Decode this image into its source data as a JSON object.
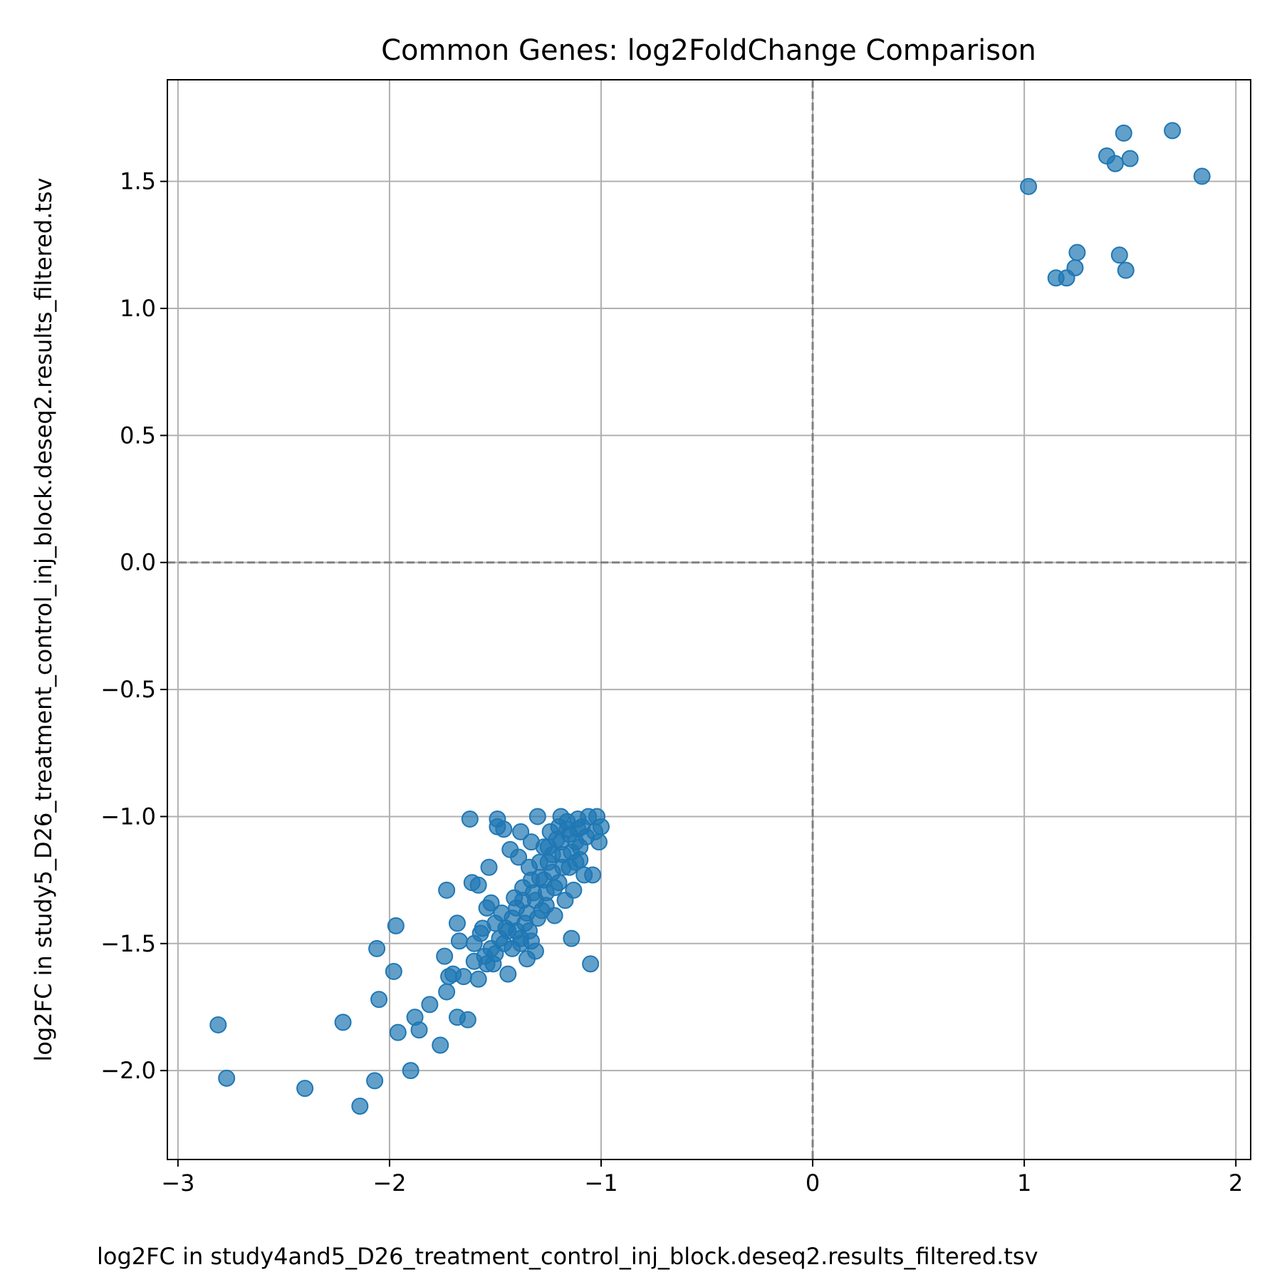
{
  "chart_data": {
    "type": "scatter",
    "title": "Common Genes: log2FoldChange Comparison",
    "xlabel": "log2FC in study4and5_D26_treatment_control_inj_block.deseq2.results_filtered.tsv",
    "ylabel": "log2FC in study5_D26_treatment_control_inj_block.deseq2.results_filtered.tsv",
    "xlim": [
      -3.05,
      2.07
    ],
    "ylim": [
      -2.35,
      1.9
    ],
    "grid": true,
    "reference_lines": {
      "x": 0,
      "y": 0,
      "style": "dashed",
      "color": "#808080"
    },
    "color": "#1f77b4",
    "x_ticks": [
      {
        "value": -3,
        "label": "−3"
      },
      {
        "value": -2,
        "label": "−2"
      },
      {
        "value": -1,
        "label": "−1"
      },
      {
        "value": 0,
        "label": "0"
      },
      {
        "value": 1,
        "label": "1"
      },
      {
        "value": 2,
        "label": "2"
      }
    ],
    "y_ticks": [
      {
        "value": -2.0,
        "label": "−2.0"
      },
      {
        "value": -1.5,
        "label": "−1.5"
      },
      {
        "value": -1.0,
        "label": "−1.0"
      },
      {
        "value": -0.5,
        "label": "−0.5"
      },
      {
        "value": 0.0,
        "label": "0.0"
      },
      {
        "value": 0.5,
        "label": "0.5"
      },
      {
        "value": 1.0,
        "label": "1.0"
      },
      {
        "value": 1.5,
        "label": "1.5"
      }
    ],
    "points": [
      {
        "x": 1.02,
        "y": 1.48
      },
      {
        "x": 1.15,
        "y": 1.12
      },
      {
        "x": 1.2,
        "y": 1.12
      },
      {
        "x": 1.24,
        "y": 1.16
      },
      {
        "x": 1.25,
        "y": 1.22
      },
      {
        "x": 1.39,
        "y": 1.6
      },
      {
        "x": 1.43,
        "y": 1.57
      },
      {
        "x": 1.45,
        "y": 1.21
      },
      {
        "x": 1.47,
        "y": 1.69
      },
      {
        "x": 1.48,
        "y": 1.15
      },
      {
        "x": 1.5,
        "y": 1.59
      },
      {
        "x": 1.7,
        "y": 1.7
      },
      {
        "x": 1.84,
        "y": 1.52
      },
      {
        "x": -2.81,
        "y": -1.82
      },
      {
        "x": -2.77,
        "y": -2.03
      },
      {
        "x": -2.4,
        "y": -2.07
      },
      {
        "x": -2.22,
        "y": -1.81
      },
      {
        "x": -2.14,
        "y": -2.14
      },
      {
        "x": -2.07,
        "y": -2.04
      },
      {
        "x": -2.06,
        "y": -1.52
      },
      {
        "x": -2.05,
        "y": -1.72
      },
      {
        "x": -1.97,
        "y": -1.43
      },
      {
        "x": -1.98,
        "y": -1.61
      },
      {
        "x": -1.96,
        "y": -1.85
      },
      {
        "x": -1.9,
        "y": -2.0
      },
      {
        "x": -1.88,
        "y": -1.79
      },
      {
        "x": -1.86,
        "y": -1.84
      },
      {
        "x": -1.81,
        "y": -1.74
      },
      {
        "x": -1.76,
        "y": -1.9
      },
      {
        "x": -1.74,
        "y": -1.55
      },
      {
        "x": -1.73,
        "y": -1.29
      },
      {
        "x": -1.73,
        "y": -1.69
      },
      {
        "x": -1.72,
        "y": -1.63
      },
      {
        "x": -1.7,
        "y": -1.62
      },
      {
        "x": -1.68,
        "y": -1.79
      },
      {
        "x": -1.68,
        "y": -1.42
      },
      {
        "x": -1.67,
        "y": -1.49
      },
      {
        "x": -1.65,
        "y": -1.63
      },
      {
        "x": -1.63,
        "y": -1.8
      },
      {
        "x": -1.62,
        "y": -1.01
      },
      {
        "x": -1.61,
        "y": -1.26
      },
      {
        "x": -1.6,
        "y": -1.5
      },
      {
        "x": -1.58,
        "y": -1.27
      },
      {
        "x": -1.58,
        "y": -1.64
      },
      {
        "x": -1.57,
        "y": -1.46
      },
      {
        "x": -1.56,
        "y": -1.44
      },
      {
        "x": -1.55,
        "y": -1.55
      },
      {
        "x": -1.54,
        "y": -1.36
      },
      {
        "x": -1.53,
        "y": -1.2
      },
      {
        "x": -1.52,
        "y": -1.52
      },
      {
        "x": -1.52,
        "y": -1.34
      },
      {
        "x": -1.51,
        "y": -1.58
      },
      {
        "x": -1.5,
        "y": -1.42
      },
      {
        "x": -1.49,
        "y": -1.01
      },
      {
        "x": -1.49,
        "y": -1.04
      },
      {
        "x": -1.48,
        "y": -1.48
      },
      {
        "x": -1.47,
        "y": -1.38
      },
      {
        "x": -1.46,
        "y": -1.05
      },
      {
        "x": -1.45,
        "y": -1.44
      },
      {
        "x": -1.44,
        "y": -1.62
      },
      {
        "x": -1.43,
        "y": -1.13
      },
      {
        "x": -1.42,
        "y": -1.4
      },
      {
        "x": -1.42,
        "y": -1.52
      },
      {
        "x": -1.41,
        "y": -1.32
      },
      {
        "x": -1.4,
        "y": -1.36
      },
      {
        "x": -1.39,
        "y": -1.16
      },
      {
        "x": -1.38,
        "y": -1.5
      },
      {
        "x": -1.38,
        "y": -1.06
      },
      {
        "x": -1.37,
        "y": -1.28
      },
      {
        "x": -1.36,
        "y": -1.42
      },
      {
        "x": -1.35,
        "y": -1.56
      },
      {
        "x": -1.34,
        "y": -1.2
      },
      {
        "x": -1.33,
        "y": -1.1
      },
      {
        "x": -1.33,
        "y": -1.49
      },
      {
        "x": -1.32,
        "y": -1.3
      },
      {
        "x": -1.31,
        "y": -1.53
      },
      {
        "x": -1.3,
        "y": -1.0
      },
      {
        "x": -1.29,
        "y": -1.24
      },
      {
        "x": -1.28,
        "y": -1.37
      },
      {
        "x": -1.27,
        "y": -1.12
      },
      {
        "x": -1.26,
        "y": -1.3
      },
      {
        "x": -1.25,
        "y": -1.18
      },
      {
        "x": -1.24,
        "y": -1.06
      },
      {
        "x": -1.23,
        "y": -1.22
      },
      {
        "x": -1.22,
        "y": -1.39
      },
      {
        "x": -1.21,
        "y": -1.09
      },
      {
        "x": -1.2,
        "y": -1.26
      },
      {
        "x": -1.19,
        "y": -1.0
      },
      {
        "x": -1.18,
        "y": -1.15
      },
      {
        "x": -1.17,
        "y": -1.33
      },
      {
        "x": -1.16,
        "y": -1.05
      },
      {
        "x": -1.15,
        "y": -1.2
      },
      {
        "x": -1.14,
        "y": -1.48
      },
      {
        "x": -1.13,
        "y": -1.29
      },
      {
        "x": -1.12,
        "y": -1.1
      },
      {
        "x": -1.11,
        "y": -1.01
      },
      {
        "x": -1.1,
        "y": -1.17
      },
      {
        "x": -1.09,
        "y": -1.04
      },
      {
        "x": -1.08,
        "y": -1.23
      },
      {
        "x": -1.07,
        "y": -1.08
      },
      {
        "x": -1.06,
        "y": -1.0
      },
      {
        "x": -1.05,
        "y": -1.58
      },
      {
        "x": -1.04,
        "y": -1.23
      },
      {
        "x": -1.03,
        "y": -1.06
      },
      {
        "x": -1.02,
        "y": -1.0
      },
      {
        "x": -1.01,
        "y": -1.1
      },
      {
        "x": -1.0,
        "y": -1.04
      },
      {
        "x": -1.46,
        "y": -1.5
      },
      {
        "x": -1.44,
        "y": -1.45
      },
      {
        "x": -1.4,
        "y": -1.45
      },
      {
        "x": -1.35,
        "y": -1.38
      },
      {
        "x": -1.31,
        "y": -1.33
      },
      {
        "x": -1.27,
        "y": -1.25
      },
      {
        "x": -1.23,
        "y": -1.15
      },
      {
        "x": -1.19,
        "y": -1.1
      },
      {
        "x": -1.15,
        "y": -1.07
      },
      {
        "x": -1.11,
        "y": -1.05
      },
      {
        "x": -1.14,
        "y": -1.14
      },
      {
        "x": -1.18,
        "y": -1.2
      },
      {
        "x": -1.22,
        "y": -1.28
      },
      {
        "x": -1.26,
        "y": -1.35
      },
      {
        "x": -1.3,
        "y": -1.4
      },
      {
        "x": -1.34,
        "y": -1.45
      },
      {
        "x": -1.38,
        "y": -1.48
      },
      {
        "x": -1.5,
        "y": -1.54
      },
      {
        "x": -1.54,
        "y": -1.58
      },
      {
        "x": -1.6,
        "y": -1.57
      },
      {
        "x": -1.12,
        "y": -1.18
      },
      {
        "x": -1.1,
        "y": -1.12
      },
      {
        "x": -1.16,
        "y": -1.02
      },
      {
        "x": -1.2,
        "y": -1.04
      },
      {
        "x": -1.25,
        "y": -1.12
      },
      {
        "x": -1.29,
        "y": -1.18
      },
      {
        "x": -1.33,
        "y": -1.25
      },
      {
        "x": -1.37,
        "y": -1.33
      }
    ]
  }
}
